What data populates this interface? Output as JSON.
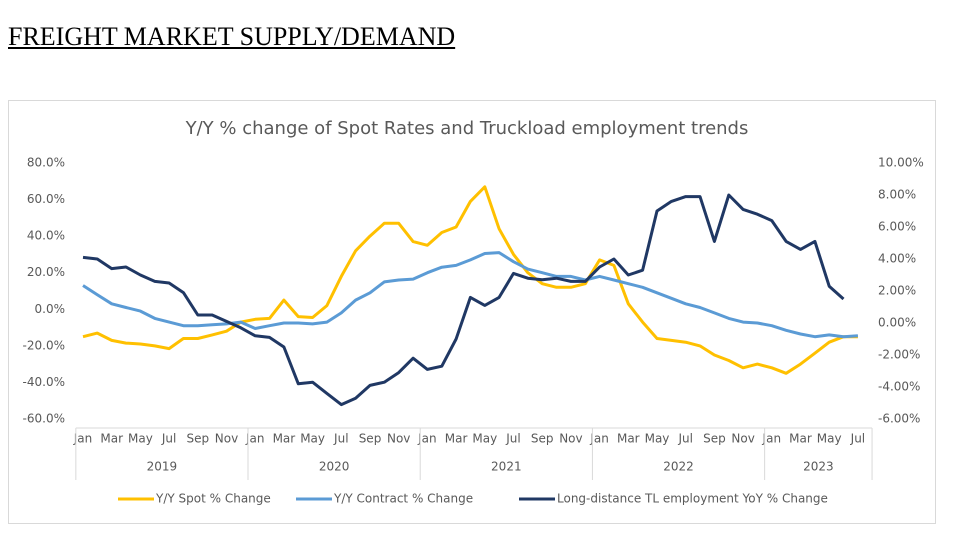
{
  "heading": "FREIGHT MARKET SUPPLY/DEMAND",
  "chart_data": {
    "type": "line",
    "title": "Y/Y % change of Spot Rates and Truckload employment trends",
    "categories": [
      "Jan",
      null,
      "Mar",
      null,
      "May",
      null,
      "Jul",
      null,
      "Sep",
      null,
      "Nov",
      null,
      "Jan",
      null,
      "Mar",
      null,
      "May",
      null,
      "Jul",
      null,
      "Sep",
      null,
      "Nov",
      null,
      "Jan",
      null,
      "Mar",
      null,
      "May",
      null,
      "Jul",
      null,
      "Sep",
      null,
      "Nov",
      null,
      "Jan",
      null,
      "Mar",
      null,
      "May",
      null,
      "Jul",
      null,
      "Sep",
      null,
      "Nov",
      null,
      "Jan",
      null,
      "Mar",
      null,
      "May",
      null,
      "Jul"
    ],
    "year_labels": [
      "2019",
      "2020",
      "2021",
      "2022",
      "2023"
    ],
    "series": [
      {
        "name": "Y/Y Spot % Change",
        "color": "#FFC000",
        "axis": "y",
        "values": [
          -15,
          -13,
          -17,
          -18.5,
          -19,
          -20,
          -21.5,
          -16,
          -16,
          -14,
          -12,
          -7,
          -5.5,
          -5,
          5,
          -4,
          -4.5,
          2,
          18,
          32,
          40,
          47,
          47,
          37,
          35,
          42,
          45,
          59,
          67,
          44,
          30,
          20,
          14,
          12,
          12,
          14,
          27,
          24,
          3,
          -7,
          -16,
          -17,
          -18,
          -20,
          -25,
          -28,
          -32,
          -30,
          -32,
          -35,
          -30,
          -24,
          -18,
          -15,
          -15
        ]
      },
      {
        "name": "Y/Y Contract % Change",
        "color": "#5B9BD5",
        "axis": "y",
        "values": [
          13,
          8,
          3,
          1,
          -1,
          -5,
          -7,
          -9,
          -9,
          -8.5,
          -8,
          -7,
          -10.5,
          -9,
          -7.5,
          -7.5,
          -8,
          -7,
          -2,
          5,
          9,
          15,
          16,
          16.5,
          20,
          23,
          24,
          27,
          30.5,
          31,
          26,
          22,
          20,
          18,
          18,
          16,
          18,
          16,
          14,
          12,
          9,
          6,
          3,
          1,
          -2,
          -5,
          -7,
          -7.5,
          -9,
          -11.5,
          -13.5,
          -15,
          -14,
          -15,
          -14.5
        ]
      },
      {
        "name": "Long-distance TL employment YoY % Change",
        "color": "#203864",
        "axis": "y2",
        "values": [
          4.1,
          4.0,
          3.4,
          3.5,
          3.0,
          2.6,
          2.5,
          1.9,
          0.5,
          0.5,
          0.1,
          -0.3,
          -0.8,
          -0.9,
          -1.5,
          -3.8,
          -3.7,
          -4.4,
          -5.1,
          -4.7,
          -3.9,
          -3.7,
          -3.1,
          -2.2,
          -2.9,
          -2.7,
          -1.0,
          1.6,
          1.1,
          1.6,
          3.1,
          2.8,
          2.7,
          2.8,
          2.6,
          2.6,
          3.5,
          4.0,
          3.0,
          3.3,
          7.0,
          7.6,
          7.9,
          7.9,
          5.1,
          8.0,
          7.1,
          6.8,
          6.4,
          5.1,
          4.6,
          5.1,
          2.3,
          1.5,
          null
        ]
      }
    ],
    "ylim": [
      -60,
      80
    ],
    "yticks": [
      {
        "value": -60,
        "label": "-60.0%"
      },
      {
        "value": -40,
        "label": "-40.0%"
      },
      {
        "value": -20,
        "label": "-20.0%"
      },
      {
        "value": 0,
        "label": "0.0%"
      },
      {
        "value": 20,
        "label": "20.0%"
      },
      {
        "value": 40,
        "label": "40.0%"
      },
      {
        "value": 60,
        "label": "60.0%"
      },
      {
        "value": 80,
        "label": "80.0%"
      }
    ],
    "y2lim": [
      -6,
      10
    ],
    "y2ticks": [
      {
        "value": -6,
        "label": "-6.00%"
      },
      {
        "value": -4,
        "label": "-4.00%"
      },
      {
        "value": -2,
        "label": "-2.00%"
      },
      {
        "value": 0,
        "label": "0.00%"
      },
      {
        "value": 2,
        "label": "2.00%"
      },
      {
        "value": 4,
        "label": "4.00%"
      },
      {
        "value": 6,
        "label": "6.00%"
      },
      {
        "value": 8,
        "label": "8.00%"
      },
      {
        "value": 10,
        "label": "10.00%"
      }
    ],
    "legend": "bottom"
  }
}
